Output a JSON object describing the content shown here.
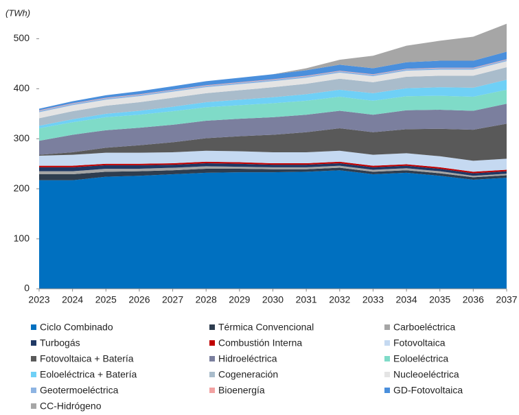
{
  "chart_data": {
    "type": "area",
    "stacked": true,
    "ylabel": "(TWh)",
    "x": [
      2023,
      2024,
      2025,
      2026,
      2027,
      2028,
      2029,
      2030,
      2031,
      2032,
      2033,
      2034,
      2035,
      2036,
      2037
    ],
    "xlim": [
      2023,
      2037
    ],
    "xticks": [
      2023,
      2024,
      2025,
      2026,
      2027,
      2028,
      2029,
      2030,
      2031,
      2032,
      2033,
      2034,
      2035,
      2036,
      2037
    ],
    "ylim": [
      0,
      550
    ],
    "yticks": [
      0,
      100,
      200,
      300,
      400,
      500
    ],
    "series": [
      {
        "name": "Ciclo Combinado",
        "color": "#0070c0",
        "values": [
          217,
          217,
          224,
          226,
          229,
          232,
          233,
          233,
          234,
          237,
          229,
          232,
          226,
          218,
          222
        ]
      },
      {
        "name": "Térmica Convencional",
        "color": "#2e3d4f",
        "values": [
          12,
          12,
          10,
          9,
          8,
          8,
          7,
          6,
          5,
          5,
          5,
          5,
          5,
          5,
          5
        ]
      },
      {
        "name": "Carboeléctrica",
        "color": "#a5a5a5",
        "values": [
          6,
          6,
          6,
          5,
          5,
          5,
          4,
          4,
          4,
          4,
          4,
          4,
          4,
          3,
          3
        ]
      },
      {
        "name": "Turbogás",
        "color": "#1f3864",
        "values": [
          8,
          8,
          7,
          7,
          6,
          6,
          6,
          5,
          5,
          5,
          5,
          5,
          5,
          5,
          5
        ]
      },
      {
        "name": "Combustión Interna",
        "color": "#c00000",
        "values": [
          3,
          3,
          3,
          3,
          3,
          3,
          3,
          3,
          3,
          3,
          3,
          3,
          3,
          3,
          3
        ]
      },
      {
        "name": "Fotovoltaica",
        "color": "#c5d9f1",
        "values": [
          20,
          22,
          22,
          22,
          22,
          22,
          22,
          22,
          22,
          22,
          22,
          22,
          22,
          22,
          22
        ]
      },
      {
        "name": "Fotovoltaica + Batería",
        "color": "#595959",
        "values": [
          2,
          5,
          10,
          15,
          20,
          25,
          30,
          35,
          40,
          45,
          45,
          48,
          55,
          62,
          70
        ]
      },
      {
        "name": "Hidroeléctrica",
        "color": "#7b7f9e",
        "values": [
          28,
          35,
          35,
          35,
          35,
          35,
          35,
          35,
          35,
          35,
          35,
          38,
          38,
          38,
          40
        ]
      },
      {
        "name": "Eoloeléctrica",
        "color": "#7fdbc8",
        "values": [
          25,
          25,
          26,
          26,
          27,
          27,
          27,
          28,
          28,
          28,
          28,
          28,
          28,
          28,
          28
        ]
      },
      {
        "name": "Eoloeléctrica + Batería",
        "color": "#6fd0f6",
        "values": [
          5,
          6,
          7,
          8,
          9,
          10,
          11,
          12,
          13,
          14,
          15,
          16,
          17,
          18,
          20
        ]
      },
      {
        "name": "Cogeneración",
        "color": "#a9bccb",
        "values": [
          15,
          16,
          16,
          17,
          18,
          18,
          19,
          20,
          21,
          22,
          22,
          23,
          23,
          24,
          25
        ]
      },
      {
        "name": "Nucleoeléctrica",
        "color": "#e4e4e4",
        "values": [
          12,
          12,
          12,
          12,
          12,
          12,
          12,
          12,
          12,
          12,
          12,
          12,
          12,
          12,
          12
        ]
      },
      {
        "name": "Geotermoeléctrica",
        "color": "#8db4e2",
        "values": [
          3,
          3,
          3,
          3,
          3,
          3,
          3,
          3,
          3,
          3,
          3,
          3,
          3,
          3,
          3
        ]
      },
      {
        "name": "Bioenergía",
        "color": "#f2a2a2",
        "values": [
          1,
          1,
          1,
          1,
          1,
          1,
          1,
          1,
          1,
          1,
          1,
          1,
          1,
          1,
          1
        ]
      },
      {
        "name": "GD-Fotovoltaica",
        "color": "#4a8fdc",
        "values": [
          3,
          4,
          5,
          6,
          7,
          8,
          9,
          10,
          11,
          12,
          12,
          13,
          14,
          14,
          15
        ]
      },
      {
        "name": "CC-Hidrógeno",
        "color": "#a6a6a6",
        "values": [
          0,
          0,
          0,
          0,
          0,
          0,
          0,
          0,
          4,
          10,
          25,
          33,
          40,
          48,
          56
        ]
      }
    ]
  }
}
